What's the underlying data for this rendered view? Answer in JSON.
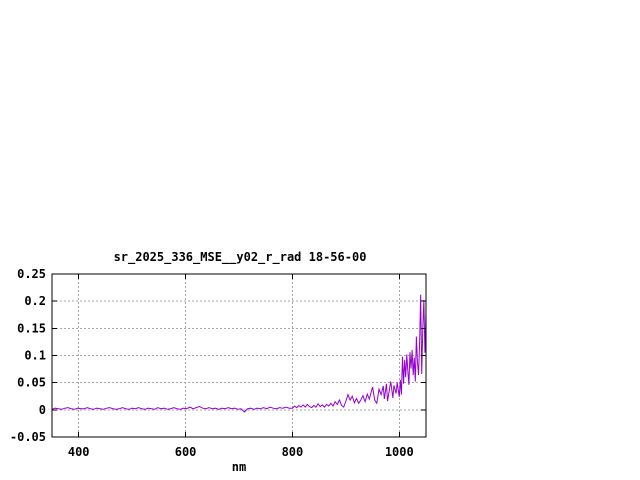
{
  "page": {
    "background": "#ffffff"
  },
  "chart_data": {
    "type": "line",
    "title": "sr_2025_336_MSE__y02_r_rad 18-56-00",
    "xlabel": "nm",
    "ylabel": "",
    "xlim": [
      350,
      1050
    ],
    "ylim": [
      -0.05,
      0.25
    ],
    "grid": true,
    "legend_position": "none",
    "line_color": "#9400d3",
    "grid_color": "#a6a6a6",
    "border_color": "#000000",
    "text_color": "#000000",
    "xticks": [
      {
        "value": 400,
        "label": "400"
      },
      {
        "value": 600,
        "label": "600"
      },
      {
        "value": 800,
        "label": "800"
      },
      {
        "value": 1000,
        "label": "1000"
      }
    ],
    "yticks": [
      {
        "value": -0.05,
        "label": "-0.05"
      },
      {
        "value": 0,
        "label": "0"
      },
      {
        "value": 0.05,
        "label": "0.05"
      },
      {
        "value": 0.1,
        "label": "0.1"
      },
      {
        "value": 0.15,
        "label": "0.15"
      },
      {
        "value": 0.2,
        "label": "0.2"
      },
      {
        "value": 0.25,
        "label": "0.25"
      }
    ],
    "points": [
      [
        350,
        0.001
      ],
      [
        356,
        0.003
      ],
      [
        362,
        0.002
      ],
      [
        368,
        0.001
      ],
      [
        374,
        0.003
      ],
      [
        380,
        0.004
      ],
      [
        386,
        0.002
      ],
      [
        392,
        0.001
      ],
      [
        398,
        0.003
      ],
      [
        404,
        0.002
      ],
      [
        410,
        0.002
      ],
      [
        416,
        0.004
      ],
      [
        422,
        0.002
      ],
      [
        428,
        0.001
      ],
      [
        434,
        0.003
      ],
      [
        440,
        0.002
      ],
      [
        446,
        0.001
      ],
      [
        452,
        0.003
      ],
      [
        458,
        0.004
      ],
      [
        464,
        0.002
      ],
      [
        470,
        0.001
      ],
      [
        476,
        0.002
      ],
      [
        482,
        0.004
      ],
      [
        488,
        0.002
      ],
      [
        494,
        0.001
      ],
      [
        500,
        0.003
      ],
      [
        506,
        0.002
      ],
      [
        512,
        0.004
      ],
      [
        518,
        0.002
      ],
      [
        524,
        0.001
      ],
      [
        530,
        0.003
      ],
      [
        536,
        0.002
      ],
      [
        542,
        0.001
      ],
      [
        548,
        0.004
      ],
      [
        554,
        0.002
      ],
      [
        560,
        0.003
      ],
      [
        566,
        0.001
      ],
      [
        572,
        0.002
      ],
      [
        578,
        0.004
      ],
      [
        584,
        0.002
      ],
      [
        590,
        0.001
      ],
      [
        596,
        0.003
      ],
      [
        602,
        0.002
      ],
      [
        608,
        0.005
      ],
      [
        614,
        0.002
      ],
      [
        620,
        0.004
      ],
      [
        626,
        0.006
      ],
      [
        632,
        0.003
      ],
      [
        638,
        0.002
      ],
      [
        644,
        0.004
      ],
      [
        650,
        0.002
      ],
      [
        656,
        0.003
      ],
      [
        662,
        0.001
      ],
      [
        668,
        0.003
      ],
      [
        674,
        0.002
      ],
      [
        680,
        0.004
      ],
      [
        686,
        0.002
      ],
      [
        692,
        0.003
      ],
      [
        698,
        0.001
      ],
      [
        704,
        0.002
      ],
      [
        710,
        -0.004
      ],
      [
        716,
        0.002
      ],
      [
        722,
        0.003
      ],
      [
        728,
        0.001
      ],
      [
        734,
        0.003
      ],
      [
        740,
        0.002
      ],
      [
        746,
        0.004
      ],
      [
        752,
        0.002
      ],
      [
        758,
        0.005
      ],
      [
        764,
        0.003
      ],
      [
        770,
        0.002
      ],
      [
        776,
        0.004
      ],
      [
        782,
        0.003
      ],
      [
        788,
        0.005
      ],
      [
        794,
        0.003
      ],
      [
        800,
        0.003
      ],
      [
        804,
        0.007
      ],
      [
        808,
        0.004
      ],
      [
        812,
        0.008
      ],
      [
        816,
        0.005
      ],
      [
        820,
        0.009
      ],
      [
        824,
        0.005
      ],
      [
        828,
        0.01
      ],
      [
        832,
        0.006
      ],
      [
        836,
        0.004
      ],
      [
        840,
        0.008
      ],
      [
        844,
        0.005
      ],
      [
        848,
        0.011
      ],
      [
        852,
        0.006
      ],
      [
        856,
        0.009
      ],
      [
        860,
        0.005
      ],
      [
        864,
        0.01
      ],
      [
        868,
        0.007
      ],
      [
        872,
        0.012
      ],
      [
        876,
        0.007
      ],
      [
        880,
        0.015
      ],
      [
        884,
        0.01
      ],
      [
        888,
        0.018
      ],
      [
        892,
        0.008
      ],
      [
        896,
        0.005
      ],
      [
        900,
        0.016
      ],
      [
        902,
        0.022
      ],
      [
        904,
        0.028
      ],
      [
        908,
        0.018
      ],
      [
        912,
        0.025
      ],
      [
        916,
        0.013
      ],
      [
        920,
        0.021
      ],
      [
        924,
        0.012
      ],
      [
        928,
        0.018
      ],
      [
        932,
        0.026
      ],
      [
        936,
        0.015
      ],
      [
        940,
        0.029
      ],
      [
        944,
        0.02
      ],
      [
        948,
        0.035
      ],
      [
        950,
        0.042
      ],
      [
        954,
        0.018
      ],
      [
        958,
        0.012
      ],
      [
        962,
        0.038
      ],
      [
        966,
        0.028
      ],
      [
        970,
        0.044
      ],
      [
        972,
        0.02
      ],
      [
        976,
        0.048
      ],
      [
        978,
        0.016
      ],
      [
        982,
        0.04
      ],
      [
        984,
        0.052
      ],
      [
        988,
        0.022
      ],
      [
        990,
        0.045
      ],
      [
        994,
        0.03
      ],
      [
        996,
        0.05
      ],
      [
        1000,
        0.024
      ],
      [
        1002,
        0.055
      ],
      [
        1004,
        0.028
      ],
      [
        1006,
        0.098
      ],
      [
        1008,
        0.048
      ],
      [
        1010,
        0.092
      ],
      [
        1012,
        0.06
      ],
      [
        1014,
        0.102
      ],
      [
        1016,
        0.072
      ],
      [
        1018,
        0.046
      ],
      [
        1020,
        0.106
      ],
      [
        1022,
        0.076
      ],
      [
        1024,
        0.11
      ],
      [
        1026,
        0.064
      ],
      [
        1028,
        0.096
      ],
      [
        1030,
        0.052
      ],
      [
        1032,
        0.135
      ],
      [
        1034,
        0.088
      ],
      [
        1036,
        0.064
      ],
      [
        1038,
        0.122
      ],
      [
        1040,
        0.212
      ],
      [
        1042,
        0.066
      ],
      [
        1044,
        0.15
      ],
      [
        1046,
        0.202
      ],
      [
        1048,
        0.105
      ],
      [
        1050,
        0.178
      ]
    ]
  }
}
